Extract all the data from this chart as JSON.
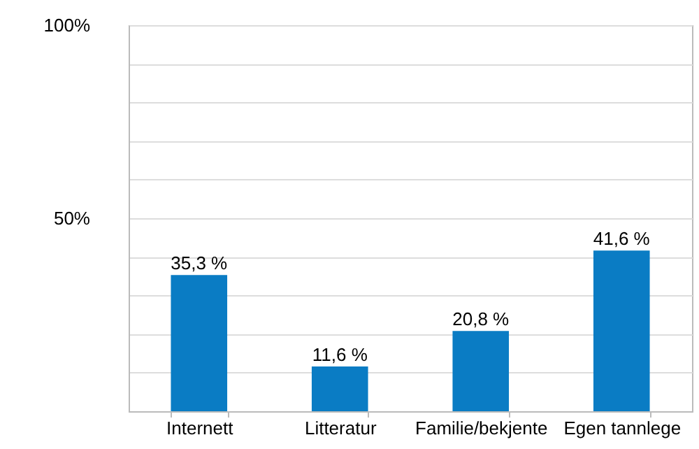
{
  "chart_data": {
    "type": "bar",
    "categories": [
      "Internett",
      "Litteratur",
      "Familie/bekjente",
      "Egen tannlege"
    ],
    "values": [
      35.3,
      11.6,
      20.8,
      41.6
    ],
    "value_labels": [
      "35,3 %",
      "11,6 %",
      "20,8 %",
      "41,6 %"
    ],
    "color": "#0a7cc4",
    "ylim": [
      0,
      100
    ],
    "yticks": [
      {
        "value": 0,
        "label": null
      },
      {
        "value": 10,
        "label": null
      },
      {
        "value": 20,
        "label": null
      },
      {
        "value": 30,
        "label": null
      },
      {
        "value": 40,
        "label": null
      },
      {
        "value": 50,
        "label": "50%"
      },
      {
        "value": 60,
        "label": null
      },
      {
        "value": 70,
        "label": null
      },
      {
        "value": 80,
        "label": null
      },
      {
        "value": 90,
        "label": null
      },
      {
        "value": 100,
        "label": "100%"
      }
    ],
    "grid": "y"
  }
}
